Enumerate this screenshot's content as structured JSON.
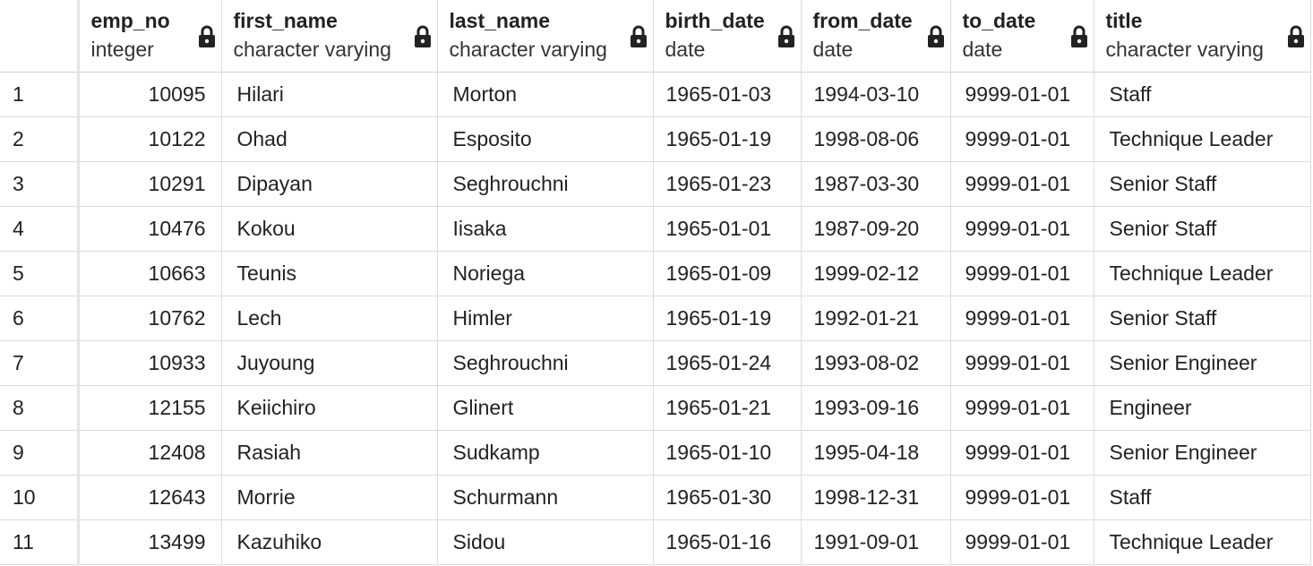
{
  "columns": [
    {
      "name": "emp_no",
      "type": "integer"
    },
    {
      "name": "first_name",
      "type": "character varying"
    },
    {
      "name": "last_name",
      "type": "character varying"
    },
    {
      "name": "birth_date",
      "type": "date"
    },
    {
      "name": "from_date",
      "type": "date"
    },
    {
      "name": "to_date",
      "type": "date"
    },
    {
      "name": "title",
      "type": "character varying"
    }
  ],
  "icons": {
    "column_lock": "lock-icon"
  },
  "rows": [
    {
      "num": "1",
      "emp_no": "10095",
      "first_name": "Hilari",
      "last_name": "Morton",
      "birth_date": "1965-01-03",
      "from_date": "1994-03-10",
      "to_date": "9999-01-01",
      "title": "Staff"
    },
    {
      "num": "2",
      "emp_no": "10122",
      "first_name": "Ohad",
      "last_name": "Esposito",
      "birth_date": "1965-01-19",
      "from_date": "1998-08-06",
      "to_date": "9999-01-01",
      "title": "Technique Leader"
    },
    {
      "num": "3",
      "emp_no": "10291",
      "first_name": "Dipayan",
      "last_name": "Seghrouchni",
      "birth_date": "1965-01-23",
      "from_date": "1987-03-30",
      "to_date": "9999-01-01",
      "title": "Senior Staff"
    },
    {
      "num": "4",
      "emp_no": "10476",
      "first_name": "Kokou",
      "last_name": "Iisaka",
      "birth_date": "1965-01-01",
      "from_date": "1987-09-20",
      "to_date": "9999-01-01",
      "title": "Senior Staff"
    },
    {
      "num": "5",
      "emp_no": "10663",
      "first_name": "Teunis",
      "last_name": "Noriega",
      "birth_date": "1965-01-09",
      "from_date": "1999-02-12",
      "to_date": "9999-01-01",
      "title": "Technique Leader"
    },
    {
      "num": "6",
      "emp_no": "10762",
      "first_name": "Lech",
      "last_name": "Himler",
      "birth_date": "1965-01-19",
      "from_date": "1992-01-21",
      "to_date": "9999-01-01",
      "title": "Senior Staff"
    },
    {
      "num": "7",
      "emp_no": "10933",
      "first_name": "Juyoung",
      "last_name": "Seghrouchni",
      "birth_date": "1965-01-24",
      "from_date": "1993-08-02",
      "to_date": "9999-01-01",
      "title": "Senior Engineer"
    },
    {
      "num": "8",
      "emp_no": "12155",
      "first_name": "Keiichiro",
      "last_name": "Glinert",
      "birth_date": "1965-01-21",
      "from_date": "1993-09-16",
      "to_date": "9999-01-01",
      "title": "Engineer"
    },
    {
      "num": "9",
      "emp_no": "12408",
      "first_name": "Rasiah",
      "last_name": "Sudkamp",
      "birth_date": "1965-01-10",
      "from_date": "1995-04-18",
      "to_date": "9999-01-01",
      "title": "Senior Engineer"
    },
    {
      "num": "10",
      "emp_no": "12643",
      "first_name": "Morrie",
      "last_name": "Schurmann",
      "birth_date": "1965-01-30",
      "from_date": "1998-12-31",
      "to_date": "9999-01-01",
      "title": "Staff"
    },
    {
      "num": "11",
      "emp_no": "13499",
      "first_name": "Kazuhiko",
      "last_name": "Sidou",
      "birth_date": "1965-01-16",
      "from_date": "1991-09-01",
      "to_date": "9999-01-01",
      "title": "Technique Leader"
    }
  ]
}
